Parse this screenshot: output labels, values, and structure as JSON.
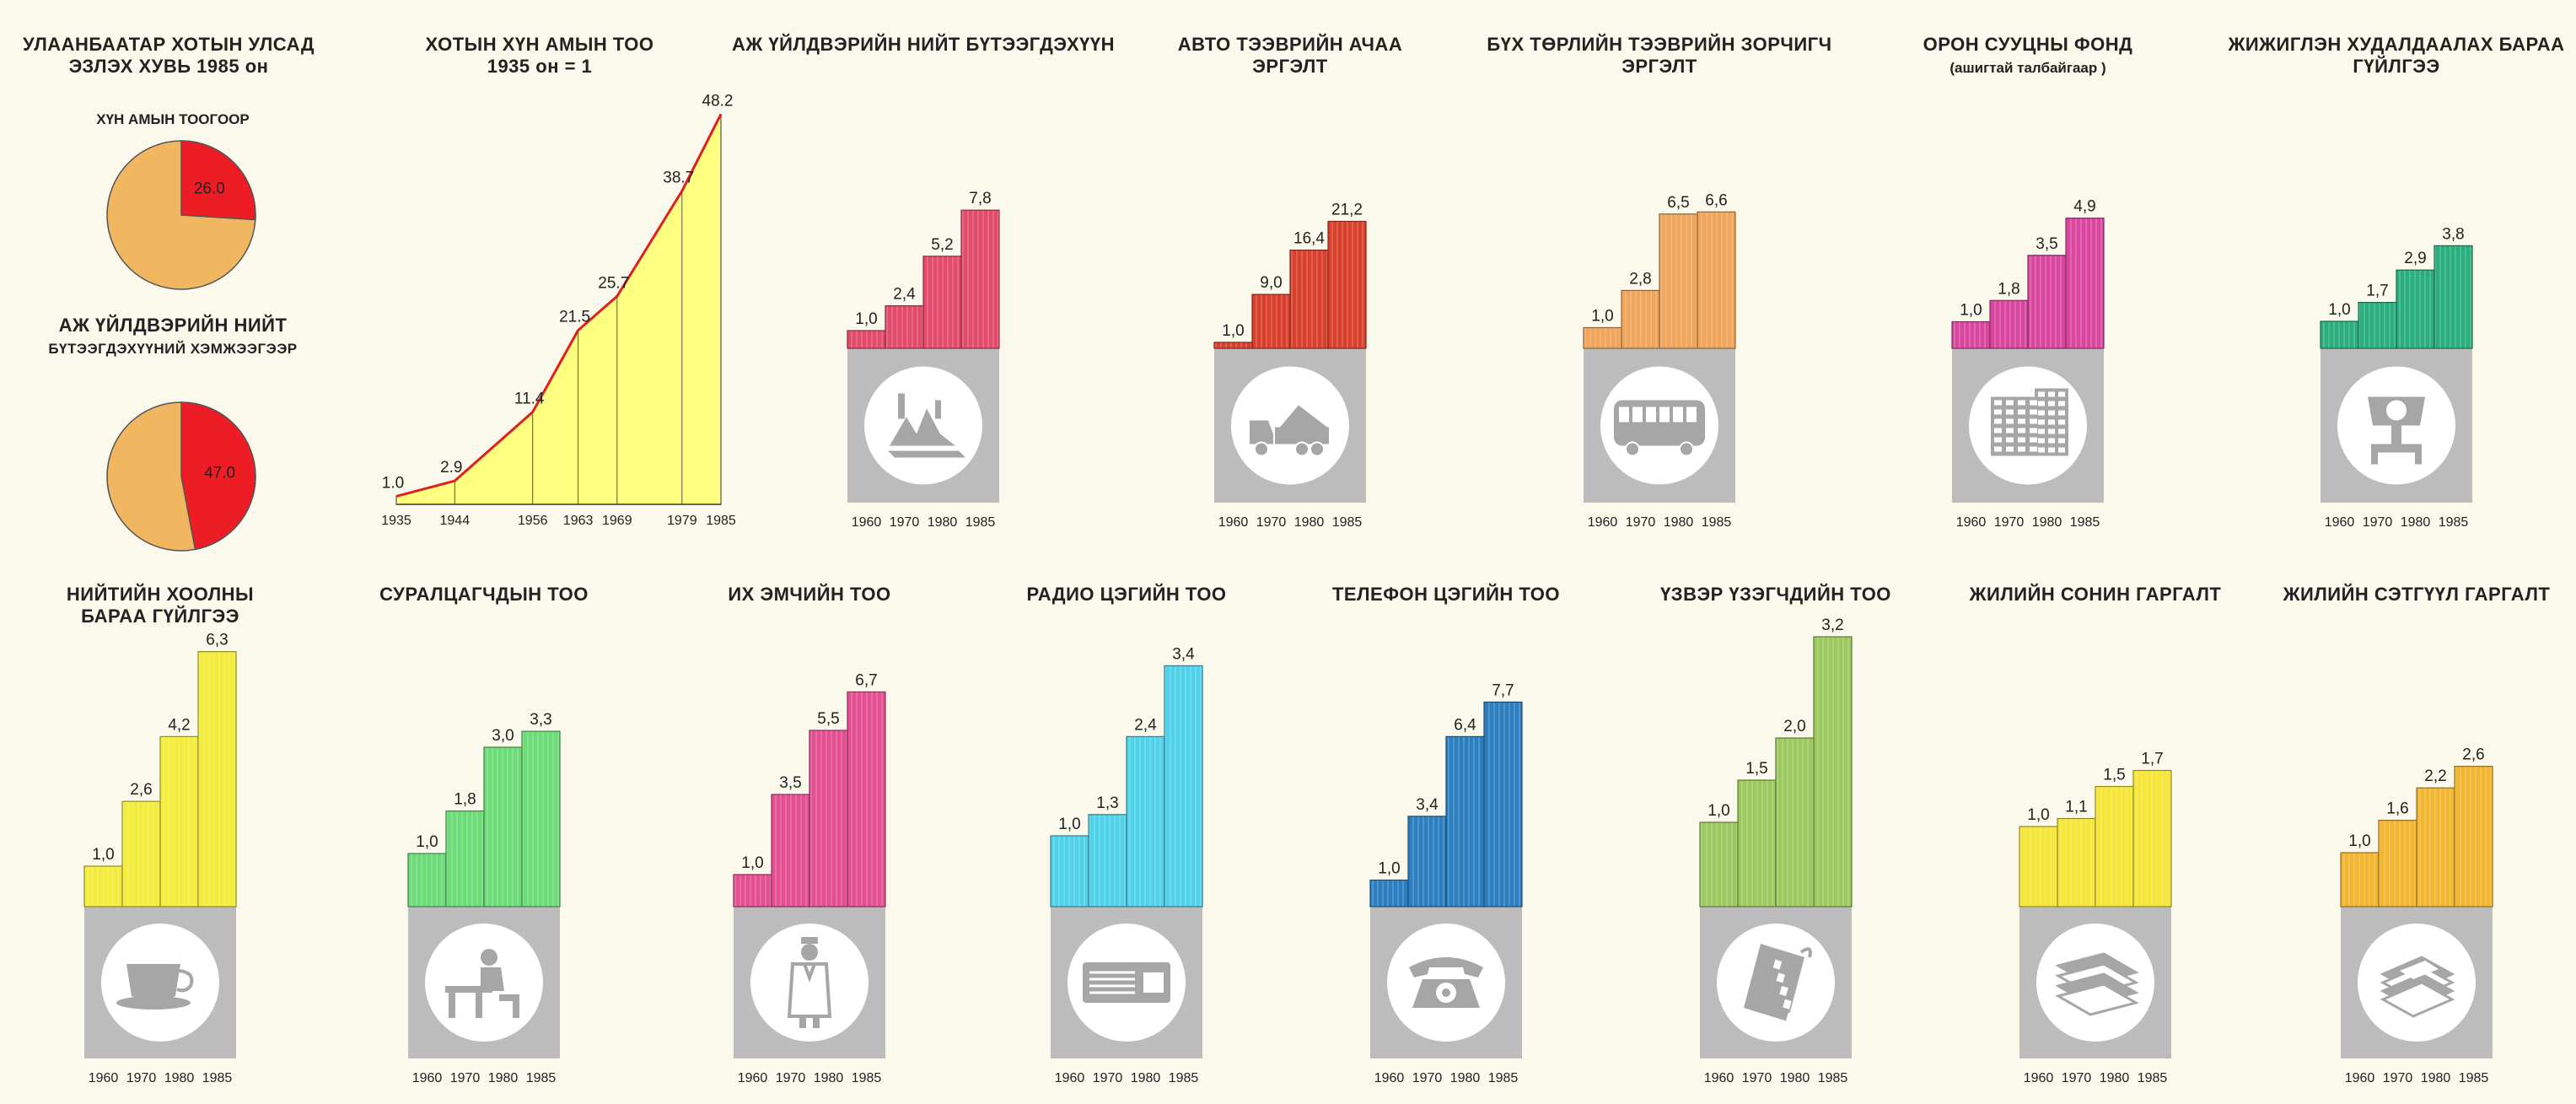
{
  "chart_data": [
    {
      "id": "pie",
      "type": "pie",
      "title": "УЛААНБААТАР ХОТЫН УЛСАД ЭЗЛЭХ ХУВЬ 1985 он",
      "pies": [
        {
          "label": "ХҮН АМЫН ТООГООР",
          "value": 26.0,
          "rest_color": "#f1b760",
          "value_color": "#ee1c24"
        },
        {
          "label": "АЖ ҮЙЛДВЭРИЙН НИЙТ БҮТЭЭГДЭХҮҮНИЙ ХЭМЖЭЭГЭЭР",
          "value": 47.0,
          "rest_color": "#f1b760",
          "value_color": "#ee1c24"
        }
      ]
    },
    {
      "id": "line",
      "type": "area",
      "title": "ХОТЫН ХҮН АМЫН ТОО",
      "subtitle": "1935 он = 1",
      "x": [
        "1935",
        "1944",
        "1956",
        "1963",
        "1969",
        "1979",
        "1985"
      ],
      "values": [
        1.0,
        2.9,
        11.4,
        21.5,
        25.7,
        38.7,
        48.2
      ],
      "labels": [
        "1.0",
        "2.9",
        "11.4",
        "21.5",
        "25.7",
        "38.7",
        "48.2"
      ],
      "ylim": [
        0,
        50
      ],
      "fill": "#ffff80",
      "line_color": "#e02020"
    },
    {
      "id": "b1",
      "type": "bar",
      "title": "АЖ ҮЙЛДВЭРИЙН НИЙТ БҮТЭЭГДЭХҮҮН",
      "subtitle": "",
      "categories": [
        "1960",
        "1970",
        "1980",
        "1985"
      ],
      "values": [
        1.0,
        2.4,
        5.2,
        7.8
      ],
      "labels": [
        "1,0",
        "2,4",
        "5,2",
        "7,8"
      ],
      "color": "#e34b6b",
      "icon": "factory-icon"
    },
    {
      "id": "b2",
      "type": "bar",
      "title": "АВТО ТЭЭВРИЙН АЧАА",
      "subtitle": "ЭРГЭЛТ",
      "categories": [
        "1960",
        "1970",
        "1980",
        "1985"
      ],
      "values": [
        1.0,
        9.0,
        16.4,
        21.2
      ],
      "labels": [
        "1,0",
        "9,0",
        "16,4",
        "21,2"
      ],
      "color": "#d9402c",
      "icon": "truck-icon"
    },
    {
      "id": "b3",
      "type": "bar",
      "title": "БҮХ ТӨРЛИЙН ТЭЭВРИЙН ЗОРЧИГЧ",
      "subtitle": "ЭРГЭЛТ",
      "categories": [
        "1960",
        "1970",
        "1980",
        "1985"
      ],
      "values": [
        1.0,
        2.8,
        6.5,
        6.6
      ],
      "labels": [
        "1,0",
        "2,8",
        "6,5",
        "6,6"
      ],
      "color": "#f0a55a",
      "icon": "bus-icon"
    },
    {
      "id": "b4",
      "type": "bar",
      "title": "ОРОН СУУЦНЫ ФОНД",
      "subtitle": "(ашигтай талбайгаар )",
      "categories": [
        "1960",
        "1970",
        "1980",
        "1985"
      ],
      "values": [
        1.0,
        1.8,
        3.5,
        4.9
      ],
      "labels": [
        "1,0",
        "1,8",
        "3,5",
        "4,9"
      ],
      "color": "#d9469e",
      "icon": "apartment-icon"
    },
    {
      "id": "b5",
      "type": "bar",
      "title": "ЖИЖИГЛЭН ХУДАЛДААЛАХ БАРАА",
      "subtitle": "ГҮЙЛГЭЭ",
      "categories": [
        "1960",
        "1970",
        "1980",
        "1985"
      ],
      "values": [
        1.0,
        1.7,
        2.9,
        3.8
      ],
      "labels": [
        "1,0",
        "1,7",
        "2,9",
        "3,8"
      ],
      "color": "#2aae7e",
      "icon": "scale-icon"
    },
    {
      "id": "b6",
      "type": "bar",
      "title": "НИЙТИЙН ХООЛНЫ",
      "subtitle": "БАРАА ГҮЙЛГЭЭ",
      "categories": [
        "1960",
        "1970",
        "1980",
        "1985"
      ],
      "values": [
        1.0,
        2.6,
        4.2,
        6.3
      ],
      "labels": [
        "1,0",
        "2,6",
        "4,2",
        "6,3"
      ],
      "color": "#f4ec3c",
      "icon": "coffee-cup-icon"
    },
    {
      "id": "b7",
      "type": "bar",
      "title": "СУРАЛЦАГЧДЫН ТОО",
      "subtitle": "",
      "categories": [
        "1960",
        "1970",
        "1980",
        "1985"
      ],
      "values": [
        1.0,
        1.8,
        3.0,
        3.3
      ],
      "labels": [
        "1,0",
        "1,8",
        "3,0",
        "3,3"
      ],
      "color": "#6bdc78",
      "icon": "student-icon"
    },
    {
      "id": "b8",
      "type": "bar",
      "title": "ИХ ЭМЧИЙН ТОО",
      "subtitle": "",
      "categories": [
        "1960",
        "1970",
        "1980",
        "1985"
      ],
      "values": [
        1.0,
        3.5,
        5.5,
        6.7
      ],
      "labels": [
        "1,0",
        "3,5",
        "5,5",
        "6,7"
      ],
      "color": "#e44f92",
      "icon": "doctor-icon"
    },
    {
      "id": "b9",
      "type": "bar",
      "title": "РАДИО ЦЭГИЙН ТОО",
      "subtitle": "",
      "categories": [
        "1960",
        "1970",
        "1980",
        "1985"
      ],
      "values": [
        1.0,
        1.3,
        2.4,
        3.4
      ],
      "labels": [
        "1,0",
        "1,3",
        "2,4",
        "3,4"
      ],
      "color": "#4fd2ea",
      "icon": "radio-icon"
    },
    {
      "id": "b10",
      "type": "bar",
      "title": "ТЕЛЕФОН ЦЭГИЙН ТОО",
      "subtitle": "",
      "categories": [
        "1960",
        "1970",
        "1980",
        "1985"
      ],
      "values": [
        1.0,
        3.4,
        6.4,
        7.7
      ],
      "labels": [
        "1,0",
        "3,4",
        "6,4",
        "7,7"
      ],
      "color": "#2b7fc0",
      "icon": "telephone-icon"
    },
    {
      "id": "b11",
      "type": "bar",
      "title": "ҮЗВЭР ҮЗЭГЧДИЙН ТОО",
      "subtitle": "",
      "categories": [
        "1960",
        "1970",
        "1980",
        "1985"
      ],
      "values": [
        1.0,
        1.5,
        2.0,
        3.2
      ],
      "labels": [
        "1,0",
        "1,5",
        "2,0",
        "3,2"
      ],
      "color": "#9cc95e",
      "icon": "film-icon"
    },
    {
      "id": "b12",
      "type": "bar",
      "title": "ЖИЛИЙН СОНИН ГАРГАЛТ",
      "subtitle": "",
      "categories": [
        "1960",
        "1970",
        "1980",
        "1985"
      ],
      "values": [
        1.0,
        1.1,
        1.5,
        1.7
      ],
      "labels": [
        "1,0",
        "1,1",
        "1,5",
        "1,7"
      ],
      "color": "#f6e638",
      "icon": "newspaper-icon"
    },
    {
      "id": "b13",
      "type": "bar",
      "title": "ЖИЛИЙН СЭТГҮҮЛ ГАРГАЛТ",
      "subtitle": "",
      "categories": [
        "1960",
        "1970",
        "1980",
        "1985"
      ],
      "values": [
        1.0,
        1.6,
        2.2,
        2.6
      ],
      "labels": [
        "1,0",
        "1,6",
        "2,2",
        "2,6"
      ],
      "color": "#f2b530",
      "icon": "magazine-icon"
    }
  ]
}
